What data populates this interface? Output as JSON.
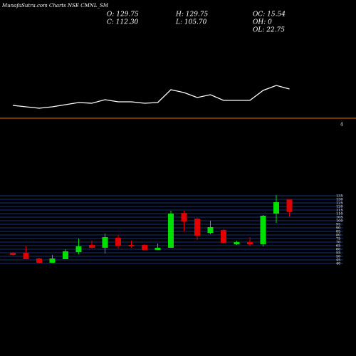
{
  "chart_data": {
    "type": "candlestick",
    "title": "MunafaSutra.com Charts NSE CMNL_SM",
    "stats": [
      "O: 129.75",
      "H: 129.75",
      "OC: 15.54",
      "C: 112.30",
      "L: 105.70",
      "OH: 0",
      "OL: 22.75"
    ],
    "panel_label": "4",
    "open": [
      55,
      55,
      47,
      41,
      46,
      56,
      66,
      62,
      76,
      66,
      66,
      59,
      62,
      111,
      103,
      83,
      87,
      67,
      70,
      67,
      110,
      129.75
    ],
    "high": [
      56,
      64,
      48,
      52,
      60,
      75,
      72,
      82,
      80,
      72,
      67,
      68,
      114,
      114,
      104,
      100,
      88,
      72,
      77,
      108,
      136,
      129.75
    ],
    "low": [
      51,
      46,
      40,
      41,
      46,
      53,
      61,
      54,
      61,
      62,
      59,
      59,
      62,
      85,
      73,
      81,
      68,
      66,
      64,
      64,
      97,
      105.7
    ],
    "close": [
      52,
      46,
      41,
      47,
      57,
      64,
      62,
      77,
      65,
      64,
      59,
      62,
      110,
      99,
      79,
      91,
      69,
      70,
      67,
      107,
      126,
      112.3
    ],
    "up_color": "#00e000",
    "down_color": "#e00000",
    "ylim": [
      38,
      138
    ],
    "yticks": [
      40,
      45,
      50,
      55,
      60,
      65,
      70,
      75,
      80,
      85,
      90,
      95,
      100,
      105,
      110,
      115,
      120,
      125,
      130,
      135
    ],
    "grid": true,
    "grid_color": "#1f3f9f",
    "indicator": {
      "values": [
        12,
        10,
        8,
        10,
        13,
        16,
        15,
        20,
        17,
        17,
        15,
        16,
        34,
        30,
        23,
        27,
        19,
        19,
        19,
        33,
        40,
        35
      ],
      "ylim": [
        0,
        50
      ],
      "color": "#ffffff"
    },
    "separator_color": "#e07000"
  }
}
